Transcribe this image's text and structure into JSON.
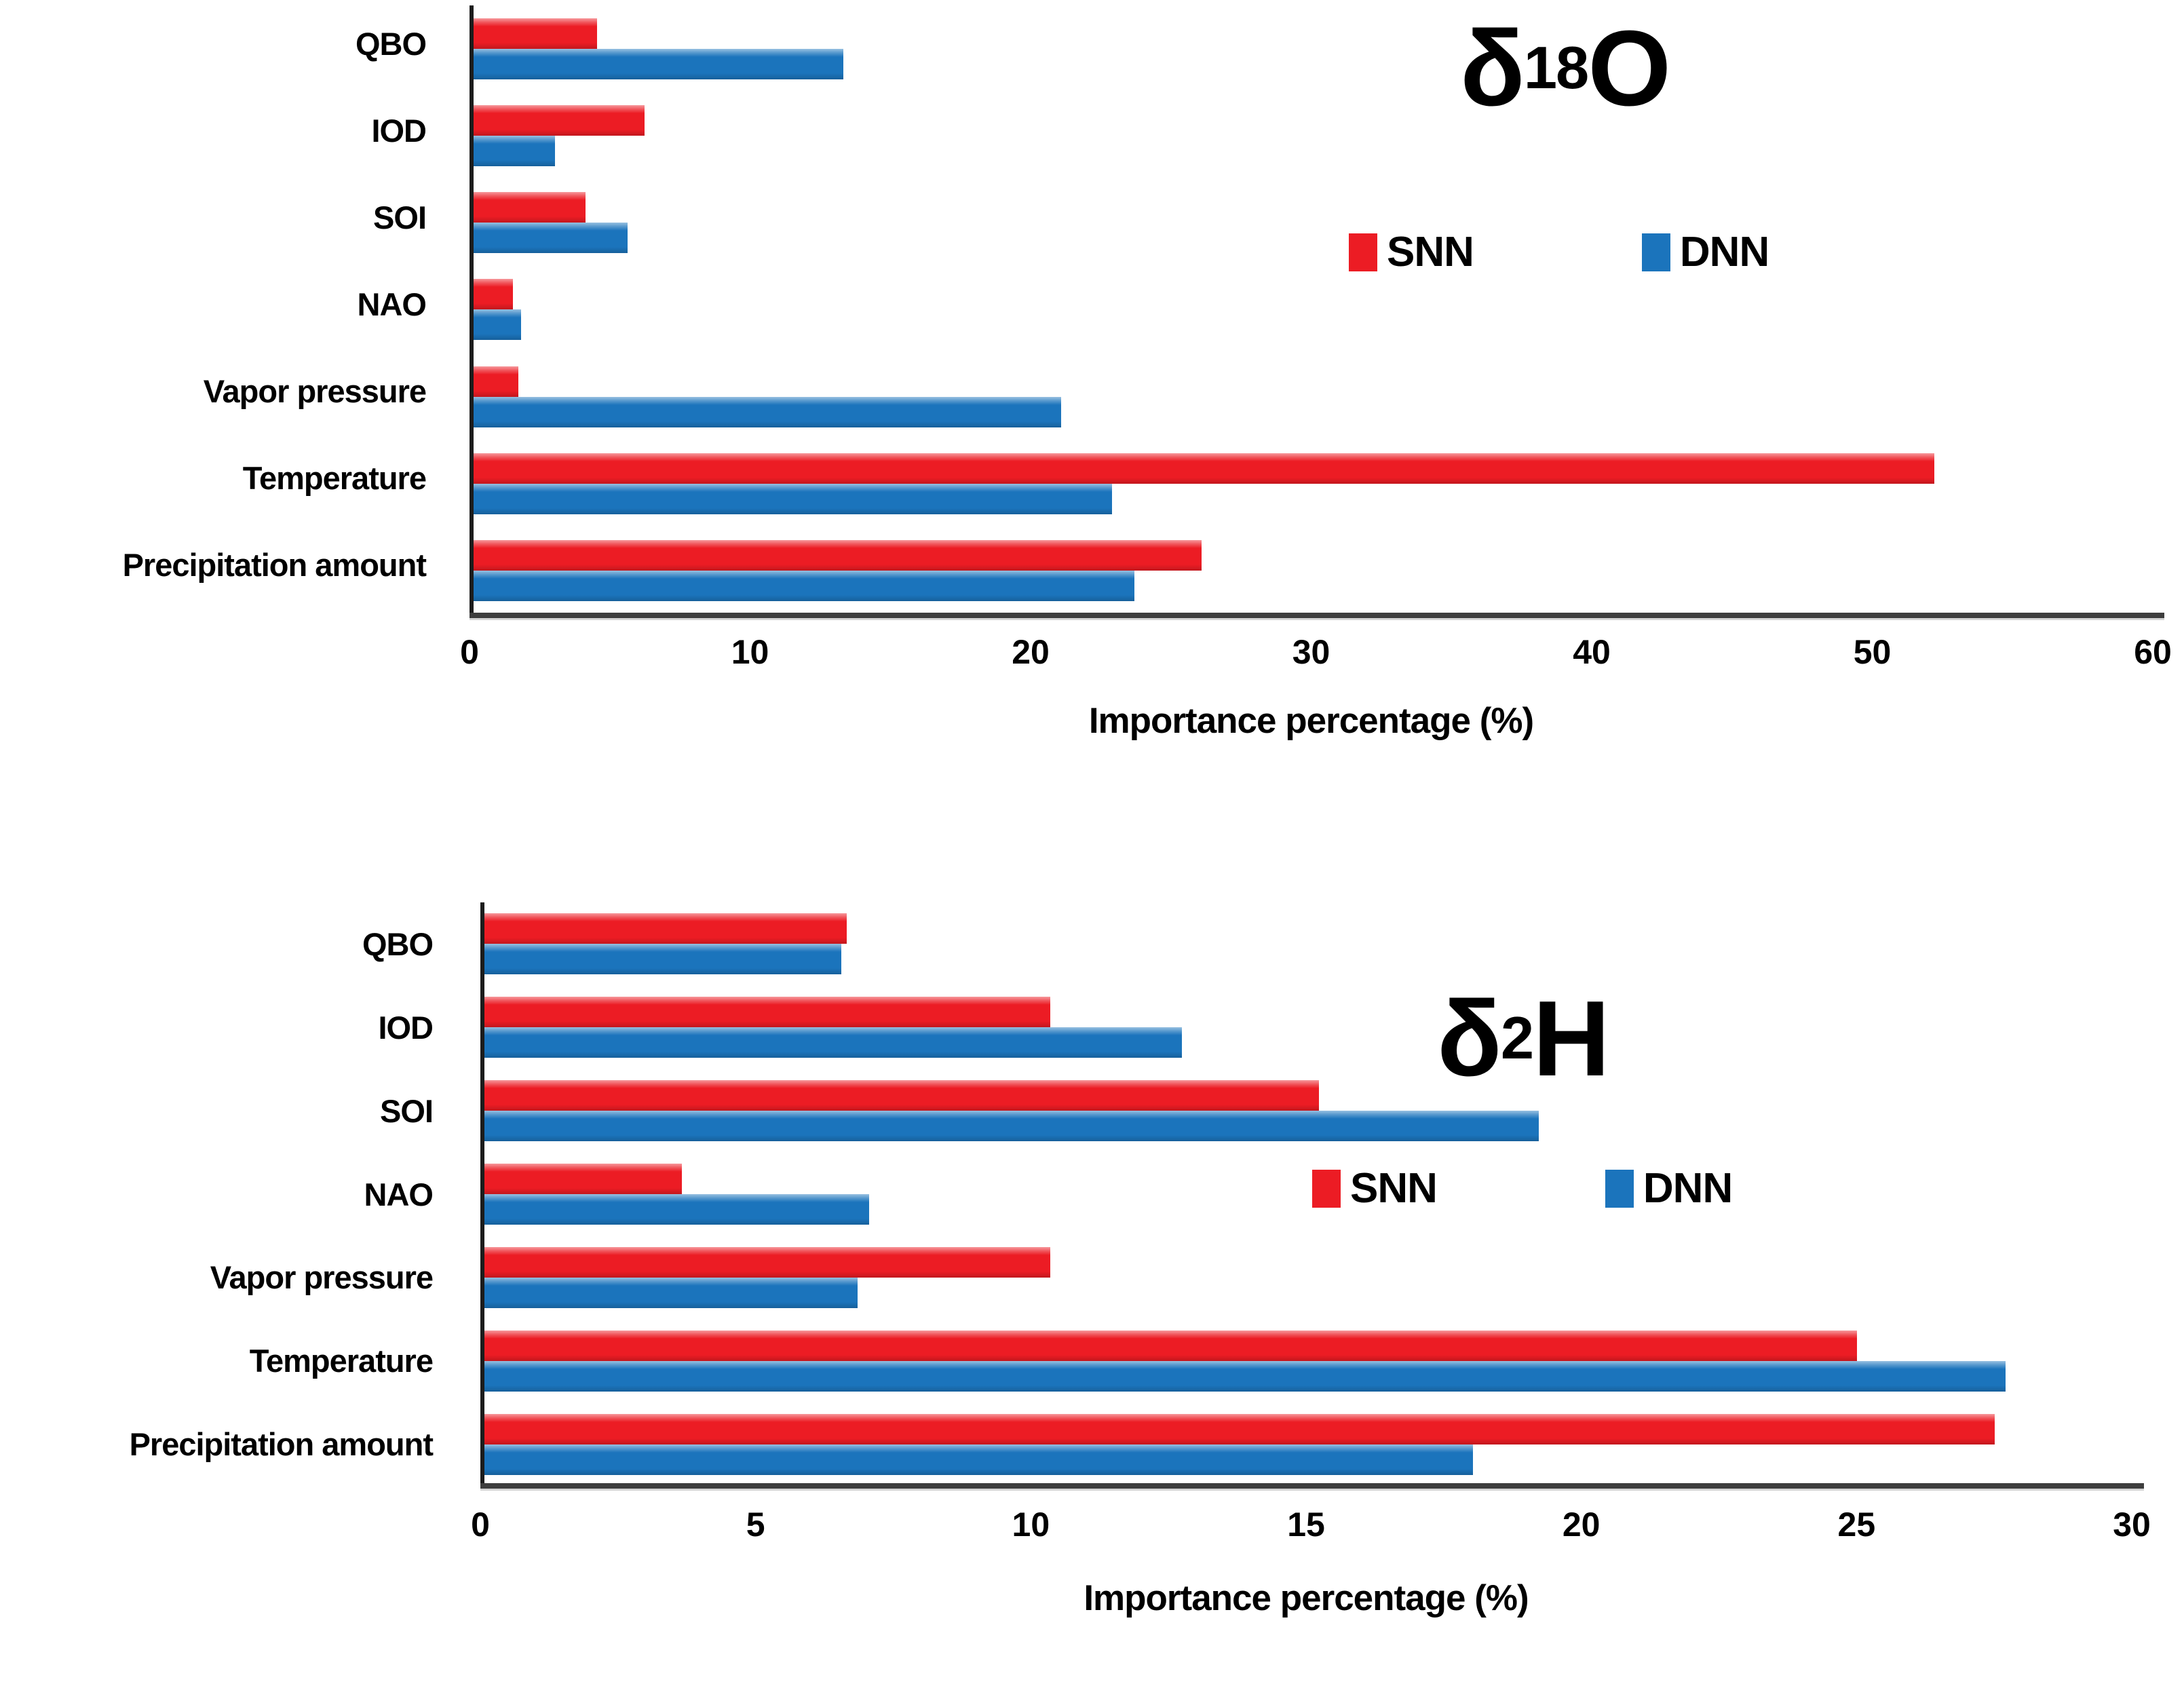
{
  "page": {
    "background": "#ffffff",
    "text_color": "#000000",
    "axis_color": "#3d3d3d"
  },
  "series_colors": {
    "SNN": "#ec1c24",
    "DNN": "#1b74bc"
  },
  "chart_data": [
    {
      "type": "bar",
      "orientation": "horizontal",
      "title": {
        "symbol": "δ",
        "superscript": "18",
        "element": "O"
      },
      "categories": [
        "QBO",
        "IOD",
        "SOI",
        "NAO",
        "Vapor pressure",
        "Temperature",
        "Precipitation amount"
      ],
      "series": [
        {
          "name": "SNN",
          "color": "#ec1c24",
          "values": [
            4.4,
            6.1,
            4.0,
            1.4,
            1.6,
            52.2,
            26.0
          ]
        },
        {
          "name": "DNN",
          "color": "#1b74bc",
          "values": [
            13.2,
            2.9,
            5.5,
            1.7,
            21.0,
            22.8,
            23.6
          ]
        }
      ],
      "xlabel": "Importance percentage (%)",
      "xlim": [
        0,
        60
      ],
      "xticks": [
        0,
        10,
        20,
        30,
        40,
        50,
        60
      ],
      "grid": false,
      "legend_position": "inside-upper-right"
    },
    {
      "type": "bar",
      "orientation": "horizontal",
      "title": {
        "symbol": "δ",
        "superscript": "2",
        "element": "H"
      },
      "categories": [
        "QBO",
        "IOD",
        "SOI",
        "NAO",
        "Vapor pressure",
        "Temperature",
        "Precipitation amount"
      ],
      "series": [
        {
          "name": "SNN",
          "color": "#ec1c24",
          "values": [
            6.6,
            10.3,
            15.2,
            3.6,
            10.3,
            25.0,
            27.5
          ]
        },
        {
          "name": "DNN",
          "color": "#1b74bc",
          "values": [
            6.5,
            12.7,
            19.2,
            7.0,
            6.8,
            27.7,
            18.0
          ]
        }
      ],
      "xlabel": "Importance percentage (%)",
      "xlim": [
        0,
        30
      ],
      "xticks": [
        0,
        5,
        10,
        15,
        20,
        25,
        30
      ],
      "grid": false,
      "legend_position": "inside-middle-right"
    }
  ]
}
